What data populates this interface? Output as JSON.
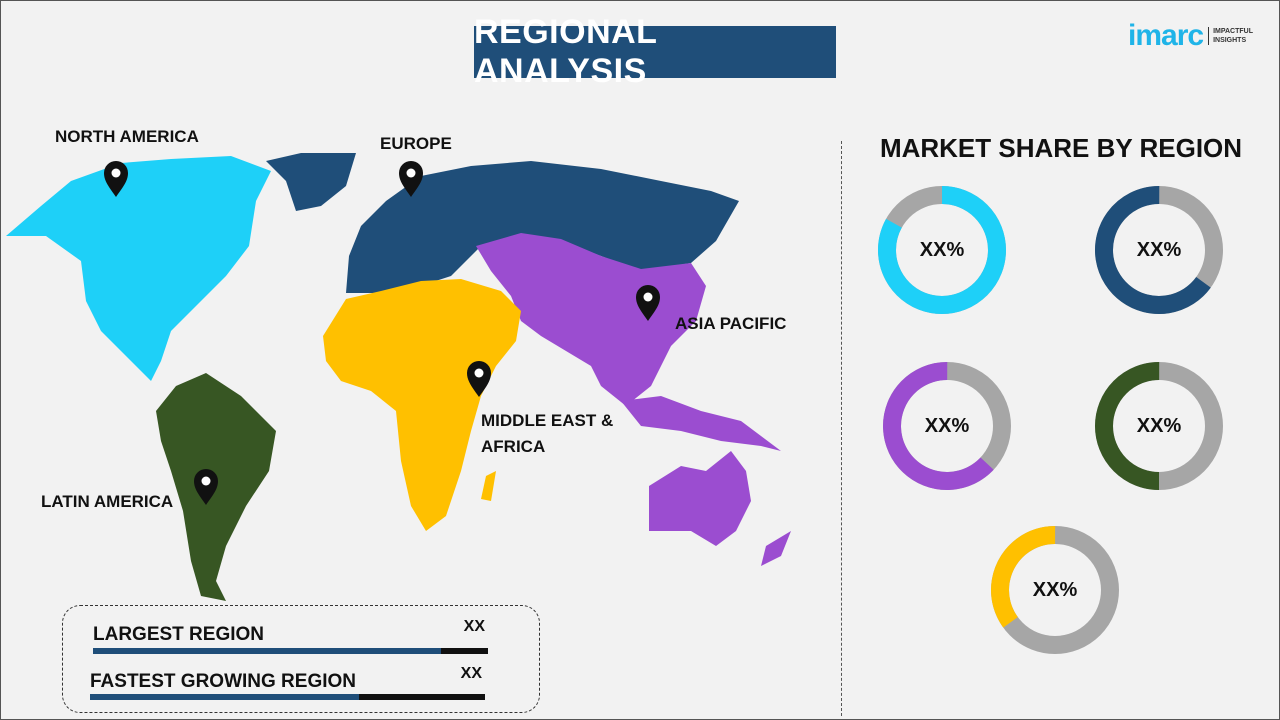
{
  "header": {
    "title": "REGIONAL ANALYSIS"
  },
  "logo": {
    "word": "imarc",
    "tagline_1": "IMPACTFUL",
    "tagline_2": "INSIGHTS"
  },
  "map": {
    "regions": [
      {
        "name": "NORTH AMERICA",
        "color": "#1ed0f8"
      },
      {
        "name": "EUROPE",
        "color": "#1f4e79"
      },
      {
        "name": "ASIA PACIFIC",
        "color": "#9b4dd0"
      },
      {
        "name": "MIDDLE EAST & AFRICA",
        "color": "#ffc000"
      },
      {
        "name": "LATIN AMERICA",
        "color": "#375623"
      }
    ],
    "labels": {
      "north_america": "NORTH AMERICA",
      "europe": "EUROPE",
      "asia_pacific": "ASIA PACIFIC",
      "mea_line1": "MIDDLE EAST &",
      "mea_line2": "AFRICA",
      "latin_america": "LATIN AMERICA"
    }
  },
  "market_share": {
    "title": "MARKET SHARE BY REGION",
    "remainder_color": "#a6a6a6",
    "donuts": [
      {
        "label": "XX%",
        "color": "#1ed0f8",
        "fraction": 0.83,
        "direction": "cw"
      },
      {
        "label": "XX%",
        "color": "#1f4e79",
        "fraction": 0.65,
        "direction": "ccw"
      },
      {
        "label": "XX%",
        "color": "#9b4dd0",
        "fraction": 0.63,
        "direction": "ccw"
      },
      {
        "label": "XX%",
        "color": "#375623",
        "fraction": 0.5,
        "direction": "ccw"
      },
      {
        "label": "XX%",
        "color": "#ffc000",
        "fraction": 0.35,
        "direction": "ccw"
      }
    ]
  },
  "summary": {
    "largest": {
      "label": "LARGEST REGION",
      "value": "XX",
      "bar_fraction": 0.88
    },
    "fastest": {
      "label": "FASTEST GROWING REGION",
      "value": "XX",
      "bar_fraction": 0.68
    }
  }
}
